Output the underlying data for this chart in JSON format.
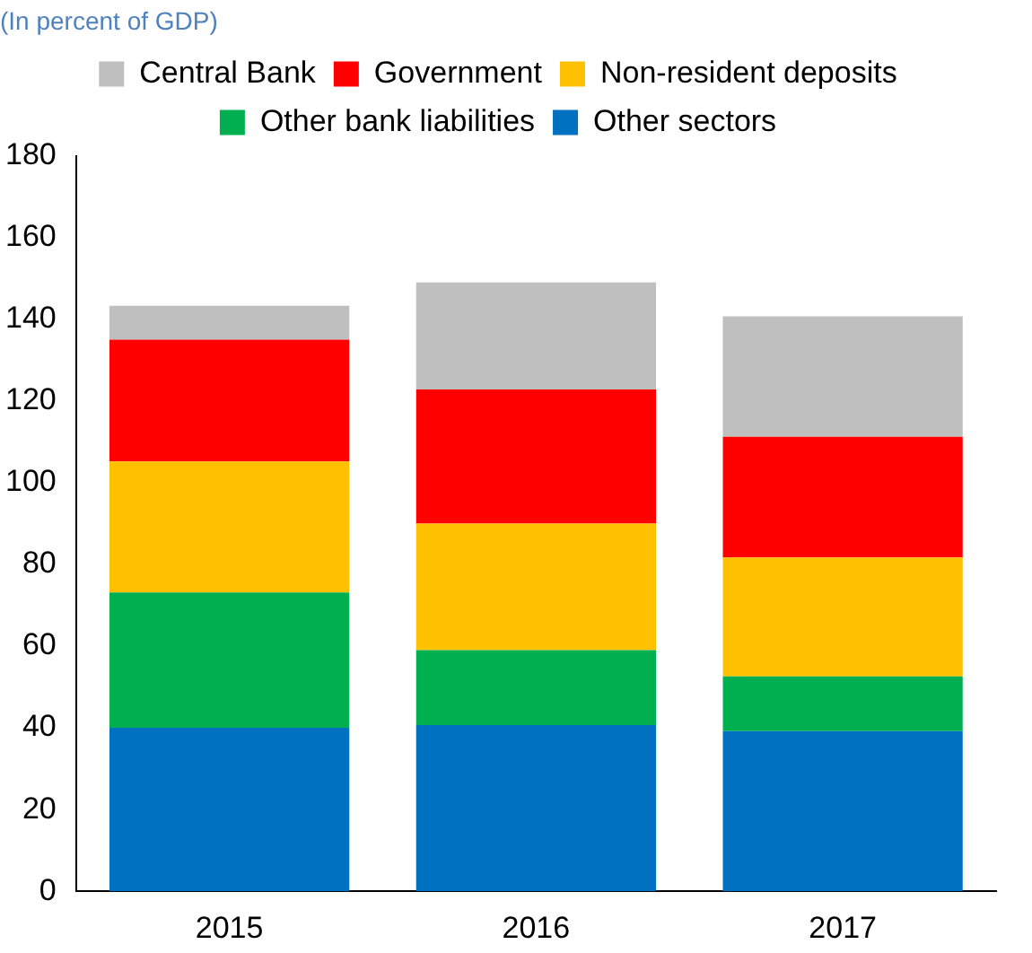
{
  "chart_data": {
    "type": "bar",
    "subtitle": "(In percent of GDP)",
    "stacked": true,
    "categories": [
      "2015",
      "2016",
      "2017"
    ],
    "series": [
      {
        "name": "Other sectors",
        "color": "#0070c0",
        "values": [
          40,
          40.7,
          39.2
        ]
      },
      {
        "name": "Other bank liabilities",
        "color": "#00b050",
        "values": [
          33.1,
          18.3,
          13.4
        ]
      },
      {
        "name": "Non-resident deposits",
        "color": "#ffc000",
        "values": [
          32.1,
          31,
          29.1
        ]
      },
      {
        "name": "Government",
        "color": "#ff0000",
        "values": [
          29.8,
          32.8,
          29.5
        ]
      },
      {
        "name": "Central Bank",
        "color": "#bfbfbf",
        "values": [
          8.3,
          26.2,
          29.5
        ]
      }
    ],
    "ylim": [
      0,
      180
    ],
    "yticks": [
      0,
      20,
      40,
      60,
      80,
      100,
      120,
      140,
      160,
      180
    ],
    "grid": false,
    "legend": "top"
  }
}
